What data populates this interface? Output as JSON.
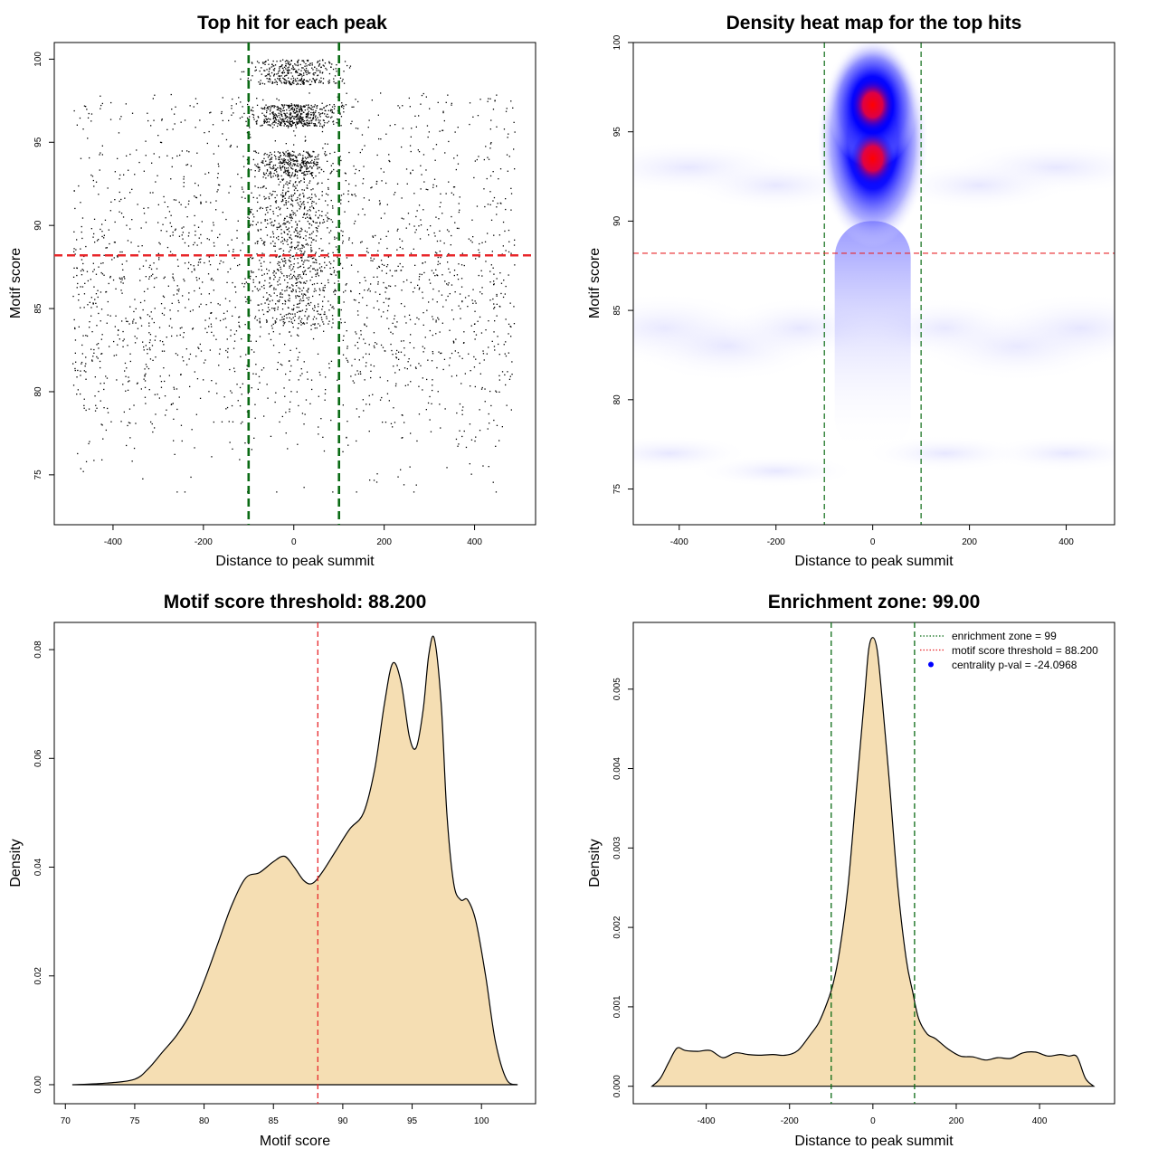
{
  "colors": {
    "points": "#000000",
    "threshold_line": "#e8262a",
    "zone_line": "#0a6b14",
    "density_fill": "#f5deb3",
    "heat_low": "#ffffff",
    "heat_mid": "#0000ff",
    "heat_high": "#ff0000",
    "legend_dot": "#0000ff"
  },
  "chart_data": [
    {
      "type": "scatter",
      "title": "Top hit for each peak",
      "xlabel": "Distance to peak summit",
      "ylabel": "Motif score",
      "xlim": [
        -530,
        535
      ],
      "ylim": [
        72,
        101
      ],
      "xticks": [
        "-400",
        "-200",
        "0",
        "200",
        "400"
      ],
      "yticks": [
        "75",
        "80",
        "85",
        "90",
        "95",
        "100"
      ],
      "hlines": [
        88.2
      ],
      "vlines": [
        -100,
        100
      ],
      "n_points": 4000,
      "note_points": "Dense cluster of points within -100..100 at scores 88-100 (banded near 94, 96-97, 99-100); sparse background across -500..500 concentrated around scores 80-86."
    },
    {
      "type": "heatmap",
      "title": "Density heat map for the top hits",
      "xlabel": "Distance to peak summit",
      "ylabel": "Motif score",
      "xlim": [
        -495,
        500
      ],
      "ylim": [
        73,
        100
      ],
      "xticks": [
        "-400",
        "-200",
        "0",
        "200",
        "400"
      ],
      "yticks": [
        "75",
        "80",
        "85",
        "90",
        "95",
        "100"
      ],
      "hlines": [
        88.2
      ],
      "vlines": [
        -100,
        100
      ],
      "peaks": [
        {
          "x": 0,
          "y": 96.5,
          "intensity": "high"
        },
        {
          "x": 0,
          "y": 93.5,
          "intensity": "high"
        }
      ]
    },
    {
      "type": "area",
      "title": "Motif score threshold: 88.200",
      "xlabel": "Motif score",
      "ylabel": "Density",
      "xlim": [
        69.2,
        103.9
      ],
      "ylim": [
        -0.0035,
        0.085
      ],
      "xticks": [
        "70",
        "75",
        "80",
        "85",
        "90",
        "95",
        "100"
      ],
      "yticks": [
        "0.00",
        "0.02",
        "0.04",
        "0.06",
        "0.08"
      ],
      "vlines": [
        88.2
      ],
      "x": [
        70.5,
        73,
        75,
        76,
        77,
        78,
        79,
        80,
        81,
        82,
        83,
        84,
        85,
        85.8,
        86.5,
        87.2,
        87.8,
        88.5,
        89.5,
        90.5,
        91.5,
        92.3,
        93,
        93.6,
        94.2,
        94.8,
        95.3,
        95.8,
        96.2,
        96.6,
        97.1,
        97.5,
        98,
        98.5,
        99,
        99.6,
        100.3,
        101,
        101.8,
        102.6
      ],
      "y": [
        0.0,
        0.0003,
        0.001,
        0.003,
        0.006,
        0.009,
        0.013,
        0.019,
        0.026,
        0.033,
        0.038,
        0.039,
        0.041,
        0.042,
        0.04,
        0.0375,
        0.037,
        0.039,
        0.043,
        0.047,
        0.05,
        0.058,
        0.07,
        0.0775,
        0.074,
        0.064,
        0.062,
        0.069,
        0.079,
        0.082,
        0.07,
        0.05,
        0.037,
        0.034,
        0.034,
        0.03,
        0.02,
        0.008,
        0.001,
        0.0
      ]
    },
    {
      "type": "area",
      "title": "Enrichment zone: 99.00",
      "xlabel": "Distance to peak summit",
      "ylabel": "Density",
      "xlim": [
        -575,
        580
      ],
      "ylim": [
        -0.00022,
        0.00584
      ],
      "xticks": [
        "-400",
        "-200",
        "0",
        "200",
        "400"
      ],
      "yticks": [
        "0.000",
        "0.001",
        "0.002",
        "0.003",
        "0.004",
        "0.005"
      ],
      "vlines": [
        -100,
        100
      ],
      "x": [
        -530,
        -510,
        -490,
        -470,
        -450,
        -420,
        -390,
        -360,
        -330,
        -300,
        -270,
        -240,
        -210,
        -180,
        -150,
        -130,
        -110,
        -95,
        -80,
        -60,
        -40,
        -20,
        -10,
        0,
        10,
        20,
        40,
        60,
        80,
        95,
        110,
        130,
        150,
        180,
        210,
        240,
        270,
        300,
        330,
        360,
        390,
        420,
        450,
        470,
        490,
        510,
        530
      ],
      "y": [
        0.0,
        0.0001,
        0.0003,
        0.00048,
        0.00045,
        0.00044,
        0.00045,
        0.00036,
        0.00042,
        0.0004,
        0.00039,
        0.0004,
        0.00039,
        0.00045,
        0.00065,
        0.0008,
        0.00105,
        0.0013,
        0.0017,
        0.0025,
        0.0037,
        0.0049,
        0.0055,
        0.00565,
        0.0055,
        0.005,
        0.0038,
        0.0025,
        0.0016,
        0.0012,
        0.00085,
        0.00066,
        0.0006,
        0.00047,
        0.00038,
        0.00037,
        0.00033,
        0.00036,
        0.00035,
        0.00042,
        0.00043,
        0.00038,
        0.0004,
        0.00038,
        0.00037,
        0.0001,
        0.0
      ],
      "legend": {
        "position": "top-right",
        "entries": [
          {
            "label": "enrichment zone = 99",
            "style": "dotted",
            "color": "#0a6b14"
          },
          {
            "label": "motif score threshold = 88.200",
            "style": "dotted",
            "color": "#e8262a"
          },
          {
            "label": "centrality p-val = -24.0968",
            "style": "dot",
            "color": "#0000ff"
          }
        ]
      }
    }
  ]
}
